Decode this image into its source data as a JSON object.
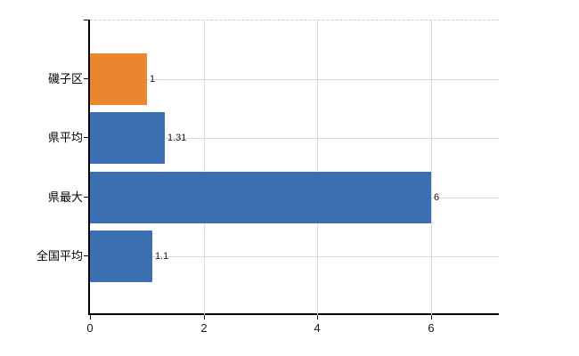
{
  "chart_data": {
    "type": "bar",
    "orientation": "horizontal",
    "title": "",
    "xlabel": "",
    "ylabel": "",
    "categories": [
      "磯子区",
      "県平均",
      "県最大",
      "全国平均"
    ],
    "values": [
      1,
      1.31,
      6,
      1.1
    ],
    "value_labels": [
      "1",
      "1.31",
      "6",
      "1.1"
    ],
    "bar_colors": [
      "#eb8530",
      "#3a70b2",
      "#3a70b2",
      "#3a70b2"
    ],
    "xlim": [
      0,
      7.2
    ],
    "x_ticks": [
      0,
      2,
      4,
      6
    ],
    "x_tick_labels": [
      "0",
      "2",
      "4",
      "6"
    ],
    "grid": true,
    "legend": "none",
    "data_labels": "outside-end"
  },
  "colors": {
    "background": "#ffffff",
    "axis": "#000000",
    "vertical_gridline": "#dcdcdc",
    "horizontal_gridline": "#d6ddd6",
    "plot_top_border": "#cccccc",
    "text": "#1a1a1a"
  }
}
